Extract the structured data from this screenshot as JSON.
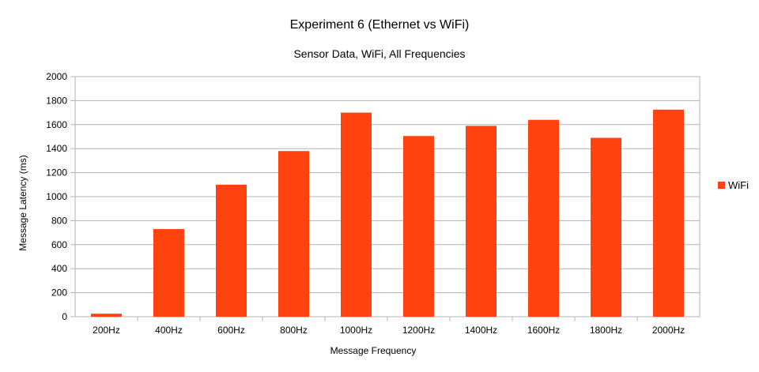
{
  "chart_data": {
    "type": "bar",
    "title": "Experiment 6 (Ethernet vs WiFi)",
    "subtitle": "Sensor Data, WiFi, All Frequencies",
    "xlabel": "Message Frequency",
    "ylabel": "Message Latency (ms)",
    "categories": [
      "200Hz",
      "400Hz",
      "600Hz",
      "800Hz",
      "1000Hz",
      "1200Hz",
      "1400Hz",
      "1600Hz",
      "1800Hz",
      "2000Hz"
    ],
    "series": [
      {
        "name": "WiFi",
        "color": "#ff420e",
        "values": [
          25,
          730,
          1100,
          1380,
          1700,
          1505,
          1590,
          1640,
          1490,
          1725
        ]
      }
    ],
    "ylim": [
      0,
      2000
    ],
    "yticks": [
      0,
      200,
      400,
      600,
      800,
      1000,
      1200,
      1400,
      1600,
      1800,
      2000
    ],
    "grid": true,
    "legend": "right"
  }
}
